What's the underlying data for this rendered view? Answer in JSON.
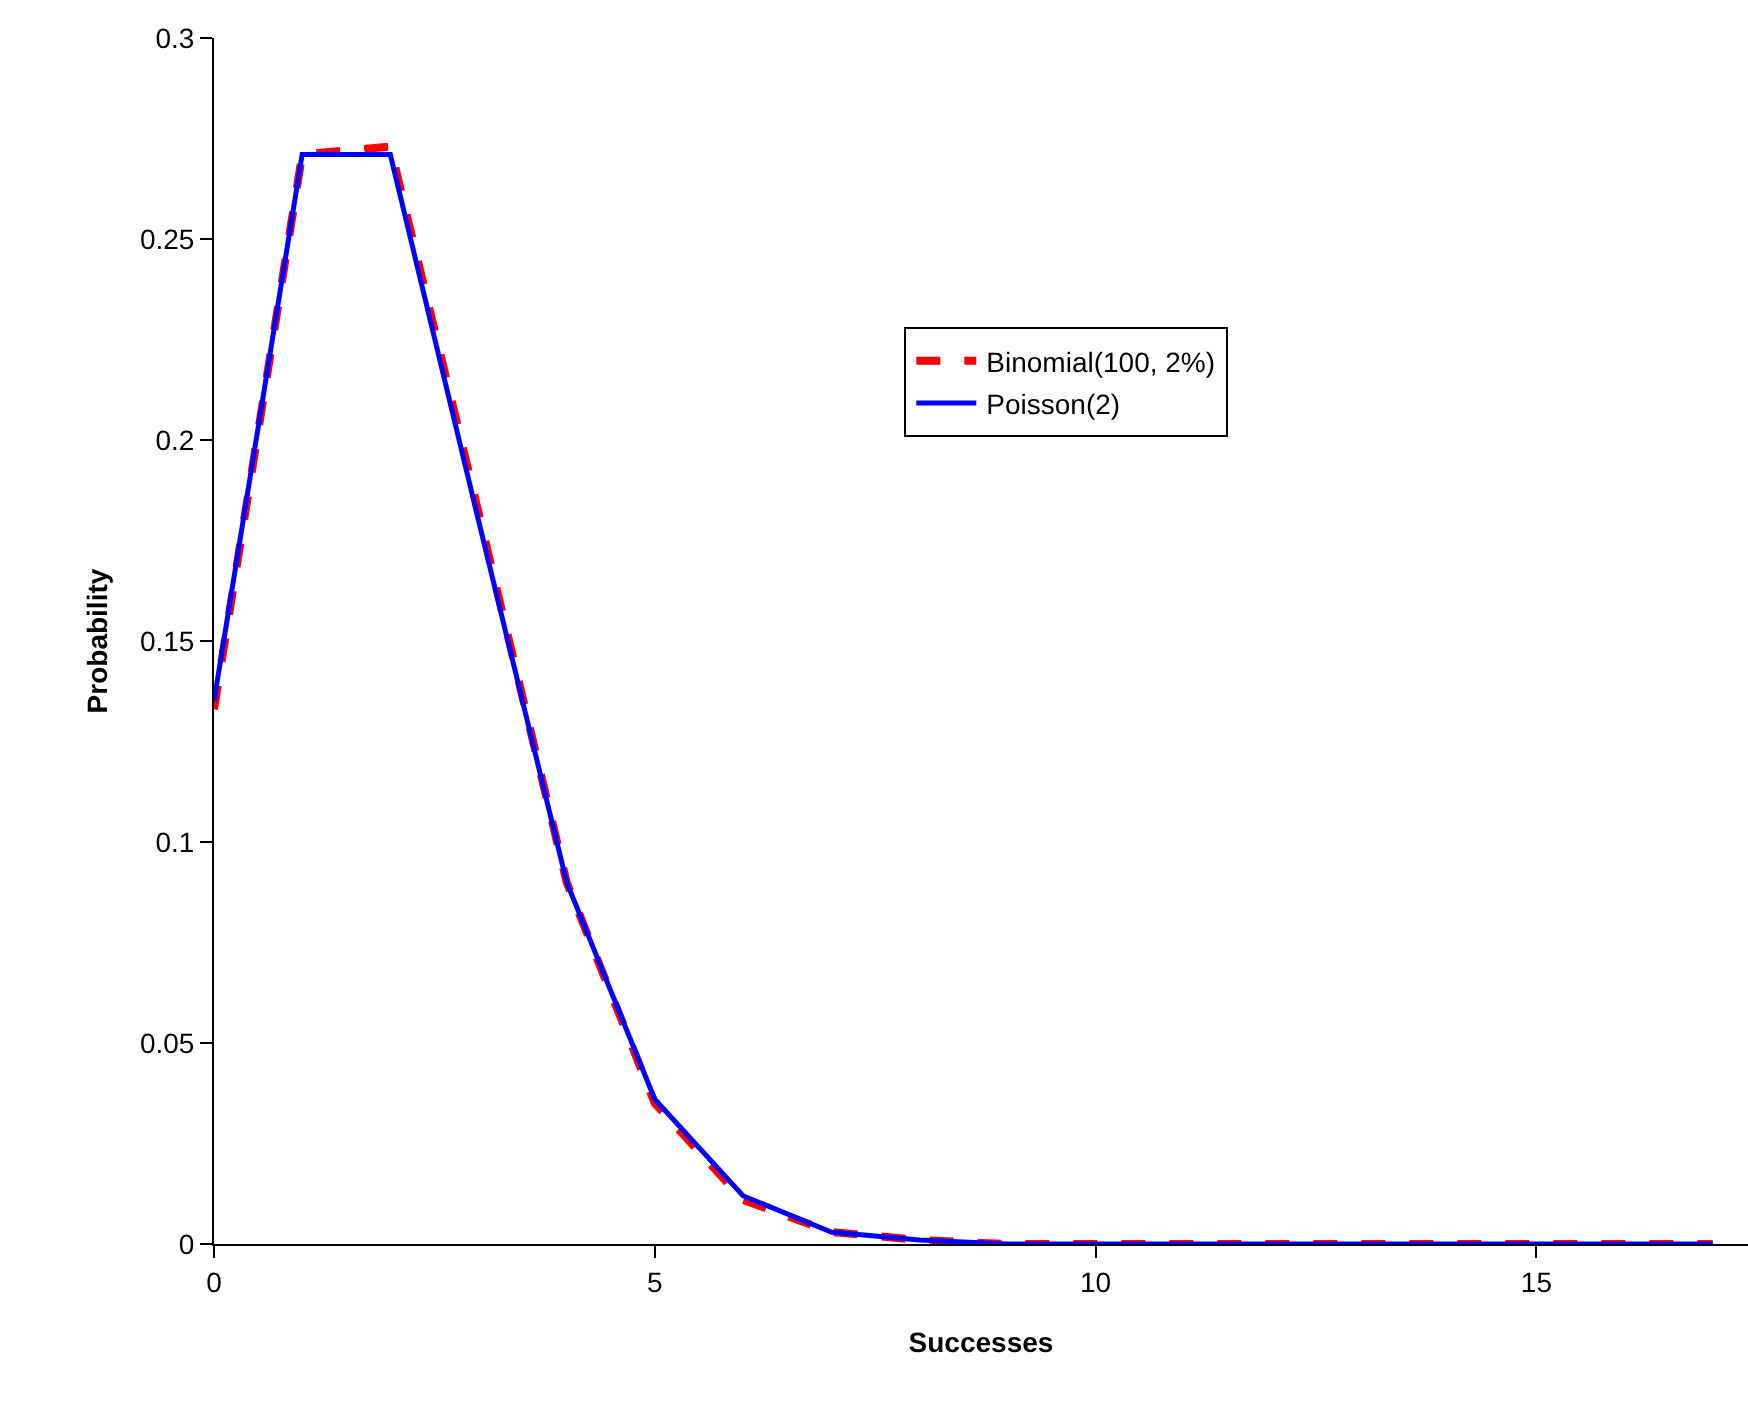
{
  "chart_data": {
    "type": "line",
    "xlabel": "Successes",
    "ylabel": "Probability",
    "x": [
      0,
      1,
      2,
      3,
      4,
      5,
      6,
      7,
      8,
      9,
      10,
      11,
      12,
      13,
      14,
      15,
      16,
      17
    ],
    "xlim": [
      0,
      17.4
    ],
    "xticks": [
      0,
      5,
      10,
      15
    ],
    "ylim": [
      0,
      0.3
    ],
    "yticks": [
      0,
      0.05,
      0.1,
      0.15,
      0.2,
      0.25,
      0.3
    ],
    "grid": false,
    "legend": "right",
    "marker": "none",
    "series": [
      {
        "name": "Binomial(100, 2%)",
        "color": "#ff0000",
        "line_style": "dashed",
        "values": [
          0.133,
          0.271,
          0.273,
          0.182,
          0.09,
          0.035,
          0.011,
          0.003,
          0.001,
          0,
          0,
          0,
          0,
          0,
          0,
          0,
          0,
          0
        ]
      },
      {
        "name": "Poisson(2)",
        "color": "#0000ff",
        "line_style": "solid",
        "values": [
          0.135,
          0.271,
          0.271,
          0.18,
          0.09,
          0.036,
          0.012,
          0.003,
          0.001,
          0,
          0,
          0,
          0,
          0,
          0,
          0,
          0,
          0
        ]
      }
    ]
  }
}
